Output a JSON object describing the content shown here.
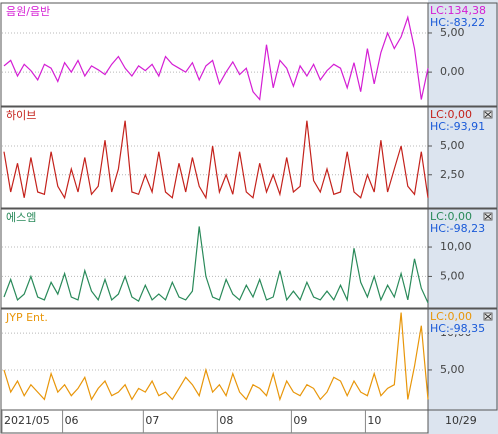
{
  "chart_data": [
    {
      "type": "line",
      "title": "음원/음반",
      "color": "#d41ed4",
      "lc": "LC:134,38",
      "hc": "HC:-83,22",
      "ylim": [
        -4.2,
        8.7
      ],
      "yticks": [
        {
          "value": 5,
          "label": "5,00"
        },
        {
          "value": 0,
          "label": "0,00"
        }
      ],
      "grid": true,
      "values": [
        0.8,
        1.5,
        -0.5,
        1.0,
        0.2,
        -1.0,
        1.0,
        0.5,
        -1.2,
        1.2,
        0.0,
        1.5,
        -0.5,
        0.8,
        0.3,
        -0.3,
        1.0,
        2.0,
        0.5,
        -0.5,
        0.8,
        0.2,
        1.0,
        -0.5,
        2.0,
        1.0,
        0.5,
        0.0,
        1.2,
        -1.0,
        0.8,
        1.5,
        -1.5,
        0.0,
        1.3,
        -0.3,
        0.5,
        -2.5,
        -3.5,
        3.5,
        -2.0,
        1.5,
        0.5,
        -1.8,
        0.8,
        -0.5,
        1.0,
        -1.0,
        0.2,
        1.0,
        0.5,
        -2.0,
        1.2,
        -2.5,
        3.0,
        -1.5,
        2.5,
        5.0,
        3.0,
        4.5,
        7.0,
        3.0,
        -3.5,
        0.5
      ]
    },
    {
      "type": "line",
      "title": "하이브",
      "color": "#c4221c",
      "lc": "LC:0,00",
      "hc": "HC:-93,91",
      "ylim": [
        -0.3,
        8.3
      ],
      "yticks": [
        {
          "value": 5,
          "label": "5,00"
        },
        {
          "value": 2.5,
          "label": "2,50"
        }
      ],
      "grid": true,
      "values": [
        4.5,
        1.0,
        3.5,
        0.5,
        4.0,
        1.0,
        0.8,
        4.5,
        1.5,
        0.5,
        3.0,
        1.0,
        4.0,
        0.8,
        1.5,
        5.5,
        1.0,
        3.0,
        7.2,
        1.0,
        0.8,
        2.5,
        1.0,
        4.5,
        1.0,
        0.5,
        3.5,
        1.0,
        4.0,
        1.5,
        0.5,
        5.0,
        1.0,
        2.5,
        0.8,
        4.5,
        1.0,
        0.5,
        3.5,
        1.0,
        2.5,
        0.8,
        4.0,
        1.0,
        1.5,
        7.2,
        2.0,
        1.0,
        3.0,
        0.8,
        1.0,
        4.5,
        1.0,
        0.5,
        2.5,
        1.0,
        5.5,
        1.0,
        3.0,
        5.0,
        1.5,
        0.8,
        4.5,
        0.5
      ]
    },
    {
      "type": "line",
      "title": "에스엠",
      "color": "#2a8a5a",
      "lc": "LC:0,00",
      "hc": "HC:-98,23",
      "ylim": [
        -0.2,
        16.3
      ],
      "yticks": [
        {
          "value": 10,
          "label": "10,00"
        },
        {
          "value": 5,
          "label": "5,00"
        }
      ],
      "grid": true,
      "values": [
        1.5,
        4.5,
        1.0,
        2.0,
        5.0,
        1.5,
        1.0,
        4.0,
        2.0,
        5.5,
        1.5,
        1.0,
        6.0,
        2.5,
        1.0,
        4.5,
        1.0,
        2.0,
        5.0,
        1.5,
        0.8,
        3.5,
        1.0,
        2.0,
        1.0,
        4.0,
        1.5,
        1.0,
        2.5,
        13.5,
        5.0,
        1.5,
        1.0,
        4.5,
        2.0,
        1.0,
        3.5,
        1.5,
        4.5,
        1.0,
        1.5,
        6.0,
        1.0,
        2.5,
        1.0,
        4.0,
        1.5,
        1.0,
        2.5,
        1.0,
        3.5,
        1.0,
        9.8,
        4.0,
        1.5,
        5.0,
        1.0,
        3.5,
        1.5,
        5.5,
        1.0,
        8.0,
        3.0,
        0.5
      ]
    },
    {
      "type": "line",
      "title": "JYP Ent.",
      "color": "#e8960a",
      "lc": "LC:0,00",
      "hc": "HC:-98,35",
      "ylim": [
        -0.3,
        13.0
      ],
      "yticks": [
        {
          "value": 10,
          "label": "10,00"
        },
        {
          "value": 5,
          "label": "5,00"
        }
      ],
      "grid": true,
      "values": [
        5.0,
        2.0,
        3.5,
        1.5,
        3.0,
        2.0,
        1.0,
        4.5,
        2.0,
        3.0,
        1.5,
        2.5,
        4.0,
        1.0,
        2.5,
        3.5,
        1.5,
        2.0,
        3.0,
        1.0,
        2.5,
        2.0,
        3.5,
        1.5,
        2.0,
        1.0,
        2.5,
        4.0,
        3.0,
        1.5,
        5.0,
        2.0,
        3.0,
        1.5,
        4.5,
        2.0,
        1.0,
        3.0,
        2.5,
        1.5,
        4.5,
        1.0,
        3.5,
        2.0,
        1.5,
        3.0,
        2.5,
        1.0,
        2.0,
        4.0,
        3.5,
        1.5,
        3.5,
        2.0,
        1.5,
        4.5,
        1.5,
        2.5,
        3.0,
        12.8,
        1.0,
        5.5,
        11.0,
        1.0
      ],
      "categories": [
        "2021/05",
        null,
        null,
        null,
        null,
        null,
        null,
        null,
        null,
        "06",
        null,
        null,
        null,
        null,
        null,
        null,
        null,
        null,
        null,
        null,
        null,
        "07",
        null,
        null,
        null,
        null,
        null,
        null,
        null,
        null,
        null,
        null,
        "08",
        null,
        null,
        null,
        null,
        null,
        null,
        null,
        null,
        null,
        null,
        "09",
        null,
        null,
        null,
        null,
        null,
        null,
        null,
        null,
        null,
        null,
        "10",
        null,
        null,
        null,
        null,
        null,
        null,
        null,
        null,
        "10/29"
      ]
    }
  ]
}
